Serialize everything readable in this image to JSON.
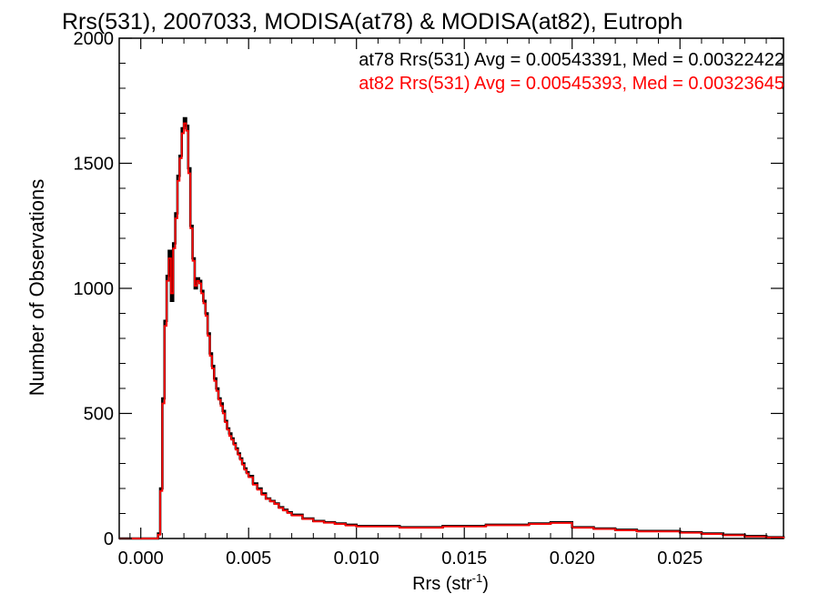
{
  "chart_data": {
    "type": "line",
    "title": "Rrs(531), 2007033, MODISA(at78) & MODISA(at82), Eutroph",
    "xlabel": "Rrs (str",
    "xlabel_sup": "-1",
    "xlabel_close": ")",
    "ylabel": "Number of Observations",
    "xlim": [
      -0.001,
      0.0298
    ],
    "ylim": [
      0,
      2000
    ],
    "x_ticks": [
      0.0,
      0.005,
      0.01,
      0.015,
      0.02,
      0.025
    ],
    "x_tick_labels": [
      "0.000",
      "0.005",
      "0.010",
      "0.015",
      "0.020",
      "0.025"
    ],
    "y_ticks": [
      0,
      500,
      1000,
      1500,
      2000
    ],
    "y_tick_labels": [
      "0",
      "500",
      "1000",
      "1500",
      "2000"
    ],
    "legend_position": "top-right",
    "grid": false,
    "series": [
      {
        "name": "at78",
        "label": "at78 Rrs(531) Avg = 0.00543391, Med = 0.00322422",
        "color": "#000000",
        "x": [
          -0.001,
          0.0004,
          0.0006,
          0.0008,
          0.0009,
          0.001,
          0.0011,
          0.0012,
          0.0013,
          0.0014,
          0.0015,
          0.0016,
          0.0017,
          0.0018,
          0.0019,
          0.002,
          0.0021,
          0.0022,
          0.0023,
          0.0024,
          0.0025,
          0.0026,
          0.0027,
          0.0028,
          0.0029,
          0.003,
          0.0031,
          0.0032,
          0.0033,
          0.0034,
          0.0035,
          0.0036,
          0.0037,
          0.0038,
          0.0039,
          0.004,
          0.0041,
          0.0042,
          0.0043,
          0.0044,
          0.0045,
          0.0046,
          0.0047,
          0.0048,
          0.0049,
          0.005,
          0.0052,
          0.0054,
          0.0056,
          0.0058,
          0.006,
          0.0062,
          0.0064,
          0.0066,
          0.0068,
          0.007,
          0.0075,
          0.008,
          0.0085,
          0.009,
          0.0095,
          0.01,
          0.0105,
          0.011,
          0.012,
          0.013,
          0.014,
          0.015,
          0.016,
          0.017,
          0.018,
          0.019,
          0.02,
          0.021,
          0.022,
          0.023,
          0.024,
          0.025,
          0.026,
          0.027,
          0.028,
          0.029,
          0.0298
        ],
        "values": [
          0,
          0,
          0,
          20,
          200,
          560,
          870,
          1050,
          1150,
          950,
          1180,
          1300,
          1450,
          1530,
          1640,
          1680,
          1650,
          1480,
          1250,
          1120,
          1000,
          1040,
          1030,
          990,
          950,
          900,
          820,
          740,
          690,
          640,
          600,
          560,
          540,
          510,
          470,
          440,
          420,
          400,
          380,
          360,
          340,
          320,
          300,
          280,
          265,
          250,
          220,
          200,
          180,
          160,
          150,
          140,
          125,
          115,
          105,
          95,
          80,
          70,
          65,
          60,
          55,
          50,
          50,
          50,
          45,
          45,
          50,
          50,
          55,
          55,
          60,
          65,
          45,
          40,
          35,
          30,
          30,
          25,
          20,
          15,
          10,
          5,
          0
        ]
      },
      {
        "name": "at82",
        "label": "at82 Rrs(531) Avg = 0.00545393, Med = 0.00323645",
        "color": "#ff0000",
        "x": [
          -0.001,
          0.0004,
          0.0006,
          0.0008,
          0.0009,
          0.001,
          0.0011,
          0.0012,
          0.0013,
          0.0014,
          0.0015,
          0.0016,
          0.0017,
          0.0018,
          0.0019,
          0.002,
          0.0021,
          0.0022,
          0.0023,
          0.0024,
          0.0025,
          0.0026,
          0.0027,
          0.0028,
          0.0029,
          0.003,
          0.0031,
          0.0032,
          0.0033,
          0.0034,
          0.0035,
          0.0036,
          0.0037,
          0.0038,
          0.0039,
          0.004,
          0.0041,
          0.0042,
          0.0043,
          0.0044,
          0.0045,
          0.0046,
          0.0047,
          0.0048,
          0.0049,
          0.005,
          0.0052,
          0.0054,
          0.0056,
          0.0058,
          0.006,
          0.0062,
          0.0064,
          0.0066,
          0.0068,
          0.007,
          0.0075,
          0.008,
          0.0085,
          0.009,
          0.0095,
          0.01,
          0.0105,
          0.011,
          0.012,
          0.013,
          0.014,
          0.015,
          0.016,
          0.017,
          0.018,
          0.019,
          0.02,
          0.021,
          0.022,
          0.023,
          0.024,
          0.025,
          0.026,
          0.027,
          0.028,
          0.029,
          0.0298
        ],
        "values": [
          0,
          0,
          0,
          15,
          190,
          540,
          850,
          1030,
          1120,
          980,
          1160,
          1280,
          1430,
          1520,
          1620,
          1660,
          1630,
          1460,
          1240,
          1110,
          1010,
          1030,
          1020,
          980,
          940,
          890,
          810,
          730,
          680,
          630,
          590,
          555,
          530,
          500,
          465,
          435,
          410,
          395,
          375,
          355,
          335,
          315,
          295,
          275,
          260,
          245,
          215,
          195,
          175,
          158,
          148,
          138,
          122,
          112,
          102,
          92,
          78,
          68,
          63,
          58,
          52,
          48,
          48,
          48,
          43,
          43,
          48,
          48,
          53,
          53,
          58,
          62,
          43,
          38,
          33,
          28,
          28,
          23,
          18,
          13,
          8,
          4,
          0
        ]
      }
    ]
  }
}
